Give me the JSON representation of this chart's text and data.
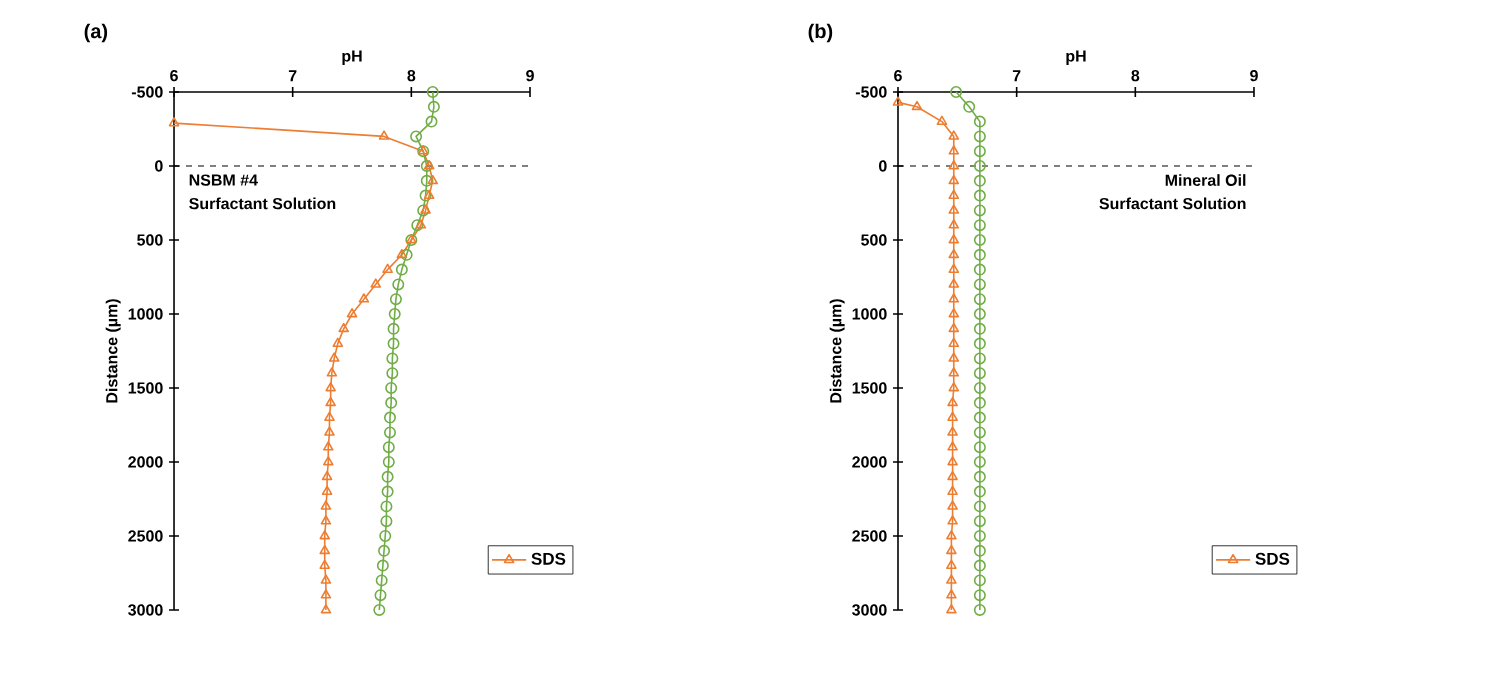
{
  "chart_data": [
    {
      "type": "line",
      "title": "(a)",
      "xlabel": "pH",
      "ylabel": "Distance (µm)",
      "orientation": "horizontal",
      "xlim": [
        6,
        9
      ],
      "xticks": [
        6,
        7,
        8,
        9
      ],
      "ylim": [
        3000,
        -500
      ],
      "yticks": [
        -500,
        0,
        500,
        1000,
        1500,
        2000,
        2500,
        3000
      ],
      "grid": false,
      "legend": "bottom right",
      "ref_lines": [
        {
          "axis": "y",
          "value": 0,
          "line_style": "dashed",
          "color": "#000000"
        }
      ],
      "annotations": [
        "NSBM #4",
        "Surfactant Solution"
      ],
      "series": [
        {
          "color": "#70ad47",
          "marker": "circle",
          "x": [
            -500,
            -400,
            -300,
            -200,
            -100,
            0,
            100,
            200,
            300,
            400,
            500,
            600,
            700,
            800,
            900,
            1000,
            1100,
            1200,
            1300,
            1400,
            1500,
            1600,
            1700,
            1800,
            1900,
            2000,
            2100,
            2200,
            2300,
            2400,
            2500,
            2600,
            2700,
            2800,
            2900,
            3000
          ],
          "values": [
            8.18,
            8.19,
            8.17,
            8.04,
            8.1,
            8.13,
            8.13,
            8.12,
            8.1,
            8.05,
            8.0,
            7.96,
            7.92,
            7.89,
            7.87,
            7.86,
            7.85,
            7.85,
            7.84,
            7.84,
            7.83,
            7.83,
            7.82,
            7.82,
            7.81,
            7.81,
            7.8,
            7.8,
            7.79,
            7.79,
            7.78,
            7.77,
            7.76,
            7.75,
            7.74,
            7.73
          ]
        },
        {
          "name": "SDS",
          "color": "#ed7d31",
          "marker": "triangle",
          "x": [
            -290,
            -200,
            -100,
            0,
            100,
            200,
            300,
            400,
            500,
            600,
            700,
            800,
            900,
            1000,
            1100,
            1200,
            1300,
            1400,
            1500,
            1600,
            1700,
            1800,
            1900,
            2000,
            2100,
            2200,
            2300,
            2400,
            2500,
            2600,
            2700,
            2800,
            2900,
            3000
          ],
          "values": [
            6.0,
            7.77,
            8.1,
            8.15,
            8.18,
            8.15,
            8.12,
            8.08,
            8.0,
            7.92,
            7.8,
            7.7,
            7.6,
            7.5,
            7.43,
            7.38,
            7.35,
            7.33,
            7.32,
            7.32,
            7.31,
            7.31,
            7.3,
            7.3,
            7.29,
            7.29,
            7.28,
            7.28,
            7.27,
            7.27,
            7.27,
            7.28,
            7.28,
            7.28
          ]
        }
      ]
    },
    {
      "type": "line",
      "title": "(b)",
      "xlabel": "pH",
      "ylabel": "Distance (µm)",
      "orientation": "horizontal",
      "xlim": [
        6,
        9
      ],
      "xticks": [
        6,
        7,
        8,
        9
      ],
      "ylim": [
        3000,
        -500
      ],
      "yticks": [
        -500,
        0,
        500,
        1000,
        1500,
        2000,
        2500,
        3000
      ],
      "grid": false,
      "legend": "bottom right",
      "ref_lines": [
        {
          "axis": "y",
          "value": 0,
          "line_style": "dashed",
          "color": "#000000"
        }
      ],
      "annotations": [
        "Mineral Oil",
        "Surfactant Solution"
      ],
      "series": [
        {
          "color": "#70ad47",
          "marker": "circle",
          "x": [
            -500,
            -400,
            -300,
            -200,
            -100,
            0,
            100,
            200,
            300,
            400,
            500,
            600,
            700,
            800,
            900,
            1000,
            1100,
            1200,
            1300,
            1400,
            1500,
            1600,
            1700,
            1800,
            1900,
            2000,
            2100,
            2200,
            2300,
            2400,
            2500,
            2600,
            2700,
            2800,
            2900,
            3000
          ],
          "values": [
            6.49,
            6.6,
            6.69,
            6.69,
            6.69,
            6.69,
            6.69,
            6.69,
            6.69,
            6.69,
            6.69,
            6.69,
            6.69,
            6.69,
            6.69,
            6.69,
            6.69,
            6.69,
            6.69,
            6.69,
            6.69,
            6.69,
            6.69,
            6.69,
            6.69,
            6.69,
            6.69,
            6.69,
            6.69,
            6.69,
            6.69,
            6.69,
            6.69,
            6.69,
            6.69,
            6.69
          ]
        },
        {
          "name": "SDS",
          "color": "#ed7d31",
          "marker": "triangle",
          "x": [
            -430,
            -400,
            -300,
            -200,
            -100,
            0,
            100,
            200,
            300,
            400,
            500,
            600,
            700,
            800,
            900,
            1000,
            1100,
            1200,
            1300,
            1400,
            1500,
            1600,
            1700,
            1800,
            1900,
            2000,
            2100,
            2200,
            2300,
            2400,
            2500,
            2600,
            2700,
            2800,
            2900,
            3000
          ],
          "values": [
            6.0,
            6.16,
            6.37,
            6.47,
            6.47,
            6.47,
            6.47,
            6.47,
            6.47,
            6.47,
            6.47,
            6.47,
            6.47,
            6.47,
            6.47,
            6.47,
            6.47,
            6.47,
            6.47,
            6.47,
            6.47,
            6.46,
            6.46,
            6.46,
            6.46,
            6.46,
            6.46,
            6.46,
            6.46,
            6.46,
            6.45,
            6.45,
            6.45,
            6.45,
            6.45,
            6.45
          ]
        }
      ]
    }
  ]
}
